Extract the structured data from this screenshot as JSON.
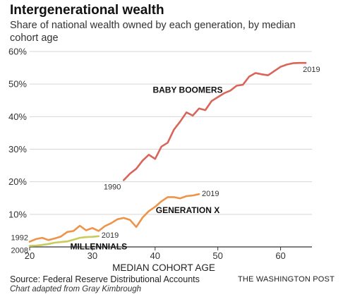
{
  "header": {
    "title": "Intergenerational wealth",
    "subtitle": "Share of national wealth owned by each generation, by median cohort age"
  },
  "footer": {
    "source": "Source: Federal Reserve Distributional Accounts",
    "credit": "Chart adapted from Gray Kimbrough",
    "brand": "THE WASHINGTON POST"
  },
  "chart_data": {
    "type": "line",
    "xlabel": "MEDIAN COHORT AGE",
    "ylabel": "",
    "xlim": [
      20,
      65
    ],
    "ylim": [
      0,
      60
    ],
    "x_ticks": [
      20,
      30,
      40,
      50,
      60
    ],
    "y_ticks": [
      0,
      10,
      20,
      30,
      40,
      50,
      60
    ],
    "y_tick_labels": [
      "",
      "10%",
      "20%",
      "30%",
      "40%",
      "50%",
      "60%"
    ],
    "grid": true,
    "series": [
      {
        "name": "BABY BOOMERS",
        "color": "#d9655a",
        "start_label": "1990",
        "end_label": "2019",
        "x": [
          35,
          36,
          37,
          38,
          39,
          40,
          41,
          42,
          43,
          44,
          45,
          46,
          47,
          48,
          49,
          50,
          51,
          52,
          53,
          54,
          55,
          56,
          57,
          58,
          59,
          60,
          61,
          62,
          63,
          64
        ],
        "y": [
          20.5,
          22.5,
          24,
          26.5,
          28.3,
          27,
          30.8,
          32,
          36,
          38.5,
          41.3,
          40.3,
          42.5,
          42,
          44.8,
          46,
          47.2,
          48,
          49.5,
          49.8,
          52.3,
          53.4,
          53,
          52.7,
          54,
          55.3,
          56,
          56.4,
          56.5,
          56.5
        ]
      },
      {
        "name": "GENERATION X",
        "color": "#ee9449",
        "start_label": "1992",
        "end_label": "2019",
        "x": [
          20,
          21,
          22,
          23,
          24,
          25,
          26,
          27,
          28,
          29,
          30,
          31,
          32,
          33,
          34,
          35,
          36,
          37,
          38,
          39,
          40,
          41,
          42,
          43,
          44,
          45,
          46,
          47
        ],
        "y": [
          1.6,
          2.4,
          2.8,
          2.1,
          2.6,
          3.2,
          4.6,
          4.9,
          6.5,
          5.1,
          5.8,
          4.9,
          6.4,
          7.3,
          8.5,
          8.9,
          8.3,
          6.1,
          9,
          11,
          12.3,
          14,
          15.3,
          15.3,
          14.9,
          15.6,
          15.8,
          16.2
        ]
      },
      {
        "name": "MILLENNIALS",
        "color": "#c8cc5a",
        "start_label": "2008",
        "end_label": "2019",
        "x": [
          20,
          21,
          22,
          23,
          24,
          25,
          26,
          27,
          28,
          29,
          30,
          31
        ],
        "y": [
          0.3,
          0.4,
          0.6,
          0.9,
          1.3,
          1.5,
          1.7,
          2.2,
          2.8,
          3,
          3.1,
          3.3
        ]
      }
    ]
  }
}
